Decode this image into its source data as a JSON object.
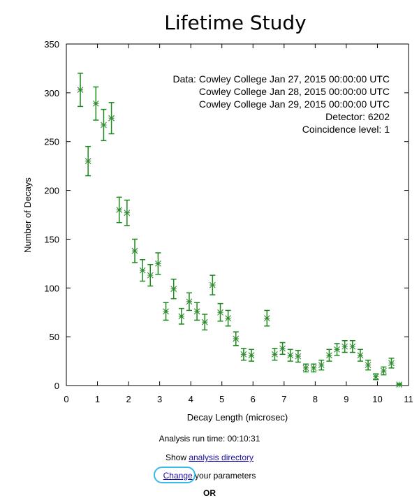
{
  "chart_data": {
    "type": "scatter",
    "title": "Lifetime Study",
    "xlabel": "Decay Length (microsec)",
    "ylabel": "Number of Decays",
    "xlim": [
      0,
      11
    ],
    "ylim": [
      0,
      350
    ],
    "xticks": [
      0,
      1,
      2,
      3,
      4,
      5,
      6,
      7,
      8,
      9,
      10,
      11
    ],
    "yticks": [
      0,
      50,
      100,
      150,
      200,
      250,
      300,
      350
    ],
    "grid": false,
    "marker": "star",
    "color": "#2e8b2e",
    "error_color": "#1a8a1a",
    "points": [
      {
        "x": 0.45,
        "y": 303,
        "err": 17
      },
      {
        "x": 0.7,
        "y": 230,
        "err": 15
      },
      {
        "x": 0.95,
        "y": 289,
        "err": 17
      },
      {
        "x": 1.2,
        "y": 267,
        "err": 16
      },
      {
        "x": 1.45,
        "y": 274,
        "err": 16
      },
      {
        "x": 1.7,
        "y": 180,
        "err": 13
      },
      {
        "x": 1.95,
        "y": 177,
        "err": 13
      },
      {
        "x": 2.2,
        "y": 138,
        "err": 12
      },
      {
        "x": 2.45,
        "y": 118,
        "err": 11
      },
      {
        "x": 2.7,
        "y": 113,
        "err": 11
      },
      {
        "x": 2.95,
        "y": 125,
        "err": 11
      },
      {
        "x": 3.2,
        "y": 76,
        "err": 9
      },
      {
        "x": 3.45,
        "y": 99,
        "err": 10
      },
      {
        "x": 3.7,
        "y": 71,
        "err": 8
      },
      {
        "x": 3.95,
        "y": 86,
        "err": 9
      },
      {
        "x": 4.2,
        "y": 76,
        "err": 9
      },
      {
        "x": 4.45,
        "y": 65,
        "err": 8
      },
      {
        "x": 4.7,
        "y": 103,
        "err": 10
      },
      {
        "x": 4.95,
        "y": 75,
        "err": 9
      },
      {
        "x": 5.2,
        "y": 69,
        "err": 8
      },
      {
        "x": 5.45,
        "y": 48,
        "err": 7
      },
      {
        "x": 5.7,
        "y": 32,
        "err": 6
      },
      {
        "x": 5.95,
        "y": 31,
        "err": 6
      },
      {
        "x": 6.45,
        "y": 69,
        "err": 8
      },
      {
        "x": 6.7,
        "y": 32,
        "err": 6
      },
      {
        "x": 6.95,
        "y": 38,
        "err": 6
      },
      {
        "x": 7.2,
        "y": 31,
        "err": 6
      },
      {
        "x": 7.45,
        "y": 30,
        "err": 6
      },
      {
        "x": 7.7,
        "y": 18,
        "err": 4
      },
      {
        "x": 7.95,
        "y": 18,
        "err": 4
      },
      {
        "x": 8.2,
        "y": 21,
        "err": 5
      },
      {
        "x": 8.45,
        "y": 31,
        "err": 6
      },
      {
        "x": 8.7,
        "y": 37,
        "err": 6
      },
      {
        "x": 8.95,
        "y": 40,
        "err": 6
      },
      {
        "x": 9.2,
        "y": 40,
        "err": 6
      },
      {
        "x": 9.45,
        "y": 31,
        "err": 6
      },
      {
        "x": 9.7,
        "y": 21,
        "err": 5
      },
      {
        "x": 9.95,
        "y": 9,
        "err": 3
      },
      {
        "x": 10.2,
        "y": 15,
        "err": 4
      },
      {
        "x": 10.45,
        "y": 23,
        "err": 5
      },
      {
        "x": 10.7,
        "y": 1,
        "err": 1
      }
    ],
    "annotation": [
      "Data: Cowley College Jan 27, 2015 00:00:00 UTC",
      "Cowley College Jan 28, 2015 00:00:00 UTC",
      "Cowley College Jan 29, 2015 00:00:00 UTC",
      "Detector: 6202",
      "Coincidence level: 1"
    ]
  },
  "footer": {
    "run_time": "Analysis run time: 00:10:31",
    "show_prefix": "Show ",
    "analysis_link": "analysis directory",
    "change_link": "Change",
    "change_suffix": " your parameters",
    "or_text": "OR"
  }
}
